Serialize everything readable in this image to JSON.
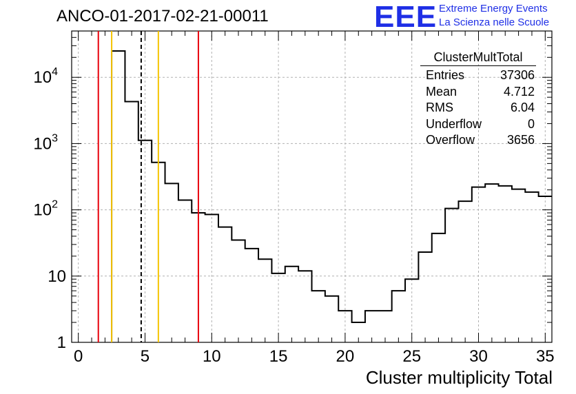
{
  "header": {
    "title": "ANCO-01-2017-02-21-00011",
    "logo_text": "EEE",
    "logo_line1": "Extreme Energy Events",
    "logo_line2": "La Scienza nelle Scuole"
  },
  "stats": {
    "title": "ClusterMultTotal",
    "rows": [
      {
        "label": "Entries",
        "value": "37306"
      },
      {
        "label": "Mean",
        "value": "4.712"
      },
      {
        "label": "RMS",
        "value": "6.04"
      },
      {
        "label": "Underflow",
        "value": "0"
      },
      {
        "label": "Overflow",
        "value": "3656"
      }
    ]
  },
  "colors": {
    "hist": "#000000",
    "red_line": "#e8000b",
    "yellow_line": "#f5c400",
    "mean_line": "#000000",
    "grid": "#b0b0b0",
    "logo": "#1f2fe6"
  },
  "chart_data": {
    "type": "bar",
    "xlabel": "Cluster multiplicity Total",
    "ylabel": "",
    "log_y": true,
    "grid": true,
    "xlim": [
      -0.5,
      35.5
    ],
    "ylim": [
      1,
      50000
    ],
    "x_ticks": [
      "0",
      "5",
      "10",
      "15",
      "20",
      "25",
      "30",
      "35"
    ],
    "x_tick_values": [
      0,
      5,
      10,
      15,
      20,
      25,
      30,
      35
    ],
    "y_ticks": [
      "1",
      "10",
      "10^2",
      "10^3",
      "10^4"
    ],
    "y_tick_values": [
      1,
      10,
      100,
      1000,
      10000
    ],
    "bin_width": 1,
    "bin_centers": [
      3,
      4,
      5,
      6,
      7,
      8,
      9,
      10,
      11,
      12,
      13,
      14,
      15,
      16,
      17,
      18,
      19,
      20,
      21,
      22,
      23,
      24,
      25,
      26,
      27,
      28,
      29,
      30,
      31,
      32,
      33,
      34,
      35
    ],
    "values": [
      25000,
      4300,
      1120,
      520,
      250,
      140,
      90,
      85,
      55,
      35,
      26,
      18,
      11,
      14,
      12,
      6,
      5,
      3,
      2,
      3,
      3,
      6,
      9,
      23,
      44,
      105,
      135,
      220,
      245,
      230,
      205,
      185,
      160
    ],
    "vertical_lines": [
      {
        "x": 1.5,
        "color": "red",
        "style": "solid"
      },
      {
        "x": 2.5,
        "color": "yellow",
        "style": "solid"
      },
      {
        "x": 4.712,
        "color": "black",
        "style": "dashed"
      },
      {
        "x": 6.0,
        "color": "yellow",
        "style": "solid"
      },
      {
        "x": 9.0,
        "color": "red",
        "style": "solid"
      }
    ]
  }
}
